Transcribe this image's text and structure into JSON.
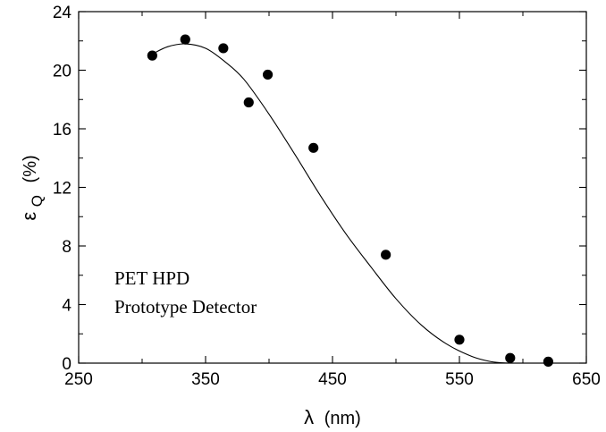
{
  "chart_data": {
    "type": "scatter",
    "title": "",
    "xlabel_symbol": "λ",
    "xlabel_unit": "(nm)",
    "ylabel_symbol": "ε",
    "ylabel_sub": "Q",
    "ylabel_unit": "(%)",
    "xlim": [
      250,
      650
    ],
    "ylim": [
      0,
      24
    ],
    "xticks": [
      250,
      350,
      450,
      550,
      650
    ],
    "yticks": [
      0,
      4,
      8,
      12,
      16,
      20,
      24
    ],
    "grid": false,
    "annotations": [
      "PET HPD",
      "Prototype Detector"
    ],
    "series": [
      {
        "kind": "points",
        "x": [
          308,
          334,
          364,
          384,
          399,
          435,
          492,
          550,
          590,
          620
        ],
        "y": [
          21.0,
          22.1,
          21.5,
          17.8,
          19.7,
          14.7,
          7.4,
          1.6,
          0.35,
          0.1
        ]
      },
      {
        "kind": "fit-curve",
        "x": [
          308,
          320,
          334,
          350,
          365,
          380,
          400,
          420,
          440,
          460,
          480,
          500,
          520,
          540,
          560,
          575,
          588
        ],
        "y": [
          21.1,
          21.6,
          21.8,
          21.5,
          20.6,
          19.4,
          17.0,
          14.3,
          11.5,
          8.9,
          6.6,
          4.4,
          2.6,
          1.3,
          0.45,
          0.1,
          0.0
        ]
      }
    ]
  }
}
